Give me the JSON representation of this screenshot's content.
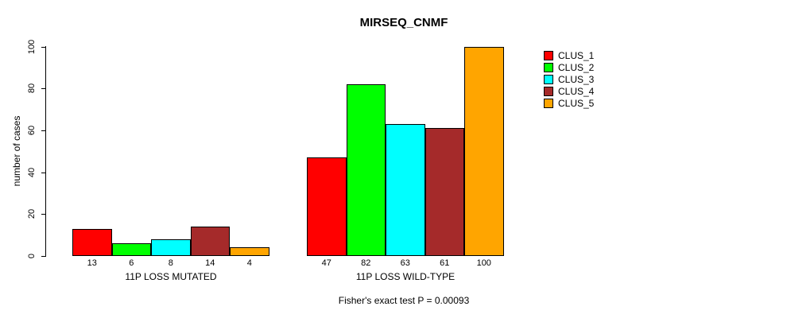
{
  "chart_data": {
    "type": "bar",
    "title": "MIRSEQ_CNMF",
    "ylabel": "number of cases",
    "xlabel": "",
    "ylim": [
      0,
      100
    ],
    "yticks": [
      0,
      20,
      40,
      60,
      80,
      100
    ],
    "grid": false,
    "legend_position": "right",
    "categories": [
      "11P LOSS MUTATED",
      "11P LOSS WILD-TYPE"
    ],
    "series": [
      {
        "name": "CLUS_1",
        "color": "#FF0000",
        "values": [
          13,
          47
        ]
      },
      {
        "name": "CLUS_2",
        "color": "#00FF00",
        "values": [
          6,
          82
        ]
      },
      {
        "name": "CLUS_3",
        "color": "#00FFFF",
        "values": [
          8,
          63
        ]
      },
      {
        "name": "CLUS_4",
        "color": "#A52A2A",
        "values": [
          14,
          61
        ]
      },
      {
        "name": "CLUS_5",
        "color": "#FFA500",
        "values": [
          4,
          100
        ]
      }
    ],
    "footnote": "Fisher's exact test P = 0.00093"
  }
}
